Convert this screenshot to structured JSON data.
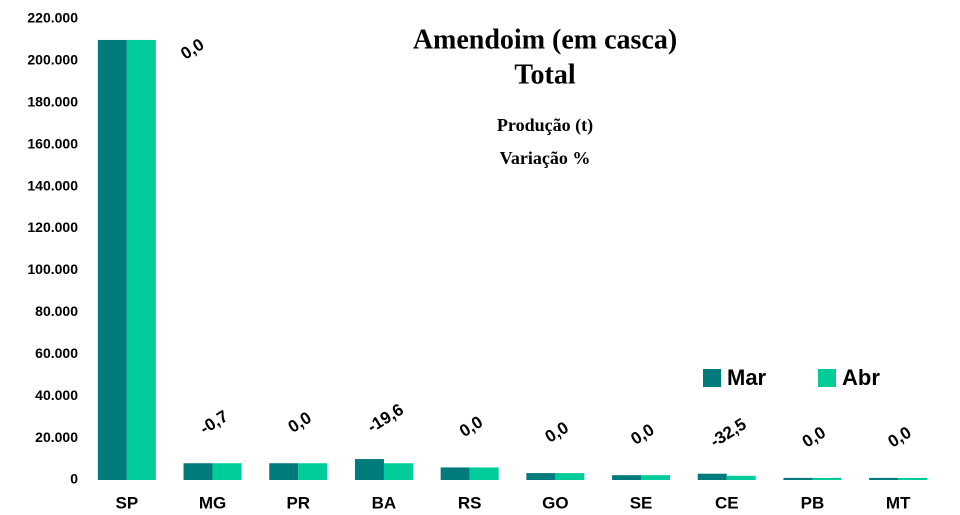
{
  "chart_data": {
    "type": "bar",
    "title": "Amendoim (em casca)",
    "subtitle": "Total",
    "notes": [
      "Produção (t)",
      "Variação %"
    ],
    "categories": [
      "SP",
      "MG",
      "PR",
      "BA",
      "RS",
      "GO",
      "SE",
      "CE",
      "PB",
      "MT"
    ],
    "series": [
      {
        "name": "Mar",
        "color": "#007b7b",
        "values": [
          210000,
          8000,
          8000,
          10000,
          6000,
          3300,
          2300,
          3000,
          1000,
          1000
        ]
      },
      {
        "name": "Abr",
        "color": "#00cc99",
        "values": [
          210000,
          8000,
          8000,
          8000,
          6000,
          3300,
          2300,
          2000,
          1000,
          1000
        ]
      }
    ],
    "annotations": [
      "0,0",
      "-0,7",
      "0,0",
      "-19,6",
      "0,0",
      "0,0",
      "0,0",
      "-32,5",
      "0,0",
      "0,0"
    ],
    "ylim": [
      0,
      220000
    ],
    "yticks": [
      0,
      {
        "value": 20000,
        "label": "20.000"
      },
      {
        "value": 40000,
        "label": "40.000"
      },
      {
        "value": 60000,
        "label": "60.000"
      },
      {
        "value": 80000,
        "label": "80.000"
      },
      {
        "value": 100000,
        "label": "100.000"
      },
      {
        "value": 120000,
        "label": "120.000"
      },
      {
        "value": 140000,
        "label": "140.000"
      },
      {
        "value": 160000,
        "label": "160.000"
      },
      {
        "value": 180000,
        "label": "180.000"
      },
      {
        "value": 200000,
        "label": "200.000"
      },
      {
        "value": 220000,
        "label": "220.000"
      }
    ],
    "legend": "right",
    "grid": false
  }
}
